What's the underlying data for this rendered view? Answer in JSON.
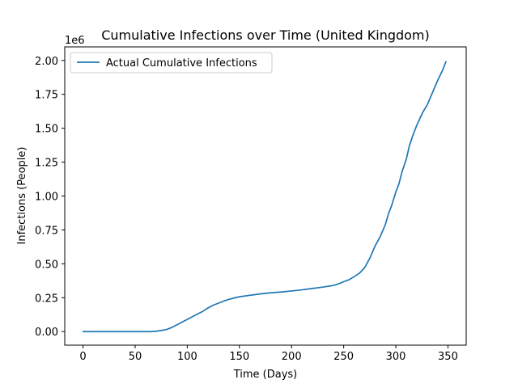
{
  "chart_data": {
    "type": "line",
    "title": "Cumulative Infections over Time (United Kingdom)",
    "xlabel": "Time (Days)",
    "ylabel": "Infections (People)",
    "y_scale_offset": "1e6",
    "xlim": [
      -17.5,
      367.5
    ],
    "ylim": [
      -0.1,
      2.1
    ],
    "x_ticks": [
      0,
      50,
      100,
      150,
      200,
      250,
      300,
      350
    ],
    "x_tick_labels": [
      "0",
      "50",
      "100",
      "150",
      "200",
      "250",
      "300",
      "350"
    ],
    "y_ticks": [
      0,
      0.25,
      0.5,
      0.75,
      1.0,
      1.25,
      1.5,
      1.75,
      2.0
    ],
    "y_tick_labels": [
      "0.00",
      "0.25",
      "0.50",
      "0.75",
      "1.00",
      "1.25",
      "1.50",
      "1.75",
      "2.00"
    ],
    "grid": false,
    "legend_position": "top-left",
    "series": [
      {
        "name": "Actual Cumulative Infections",
        "color": "#1f77b4",
        "x": [
          0,
          10,
          20,
          30,
          40,
          50,
          60,
          65,
          70,
          75,
          80,
          85,
          90,
          95,
          100,
          105,
          110,
          115,
          120,
          125,
          130,
          135,
          140,
          145,
          150,
          160,
          170,
          180,
          190,
          200,
          210,
          220,
          230,
          240,
          245,
          250,
          255,
          260,
          265,
          270,
          275,
          280,
          285,
          290,
          293,
          296,
          300,
          303,
          306,
          310,
          313,
          316,
          320,
          323,
          326,
          330,
          335,
          340,
          345,
          348
        ],
        "y": [
          0,
          0,
          0,
          0,
          0,
          0,
          0,
          0,
          0.003,
          0.008,
          0.015,
          0.03,
          0.05,
          0.07,
          0.09,
          0.11,
          0.13,
          0.15,
          0.175,
          0.195,
          0.21,
          0.225,
          0.238,
          0.248,
          0.257,
          0.268,
          0.278,
          0.286,
          0.292,
          0.3,
          0.308,
          0.318,
          0.328,
          0.34,
          0.352,
          0.368,
          0.382,
          0.405,
          0.43,
          0.47,
          0.54,
          0.63,
          0.7,
          0.79,
          0.87,
          0.93,
          1.03,
          1.09,
          1.18,
          1.27,
          1.37,
          1.44,
          1.52,
          1.57,
          1.62,
          1.67,
          1.76,
          1.85,
          1.93,
          1.99
        ]
      }
    ]
  }
}
